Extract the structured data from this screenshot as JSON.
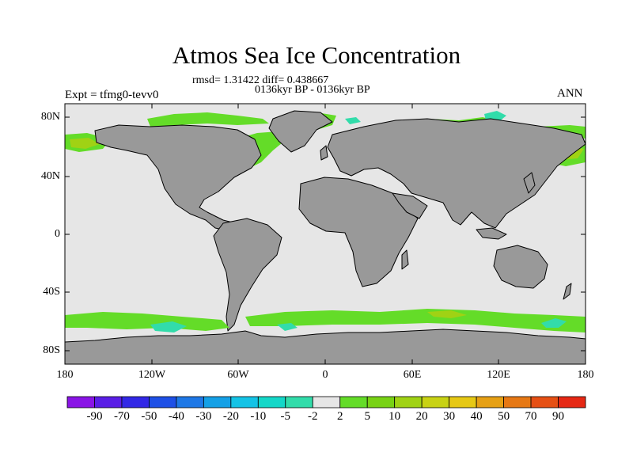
{
  "title": "Atmos Sea Ice Concentration",
  "stats_text": "rmsd= 1.31422 diff= 0.438667",
  "period_text": "0136kyr BP - 0136kyr BP",
  "expt_text": "Expt = tfmg0-tevv0",
  "season_text": "ANN",
  "lat_labels": [
    "80N",
    "40N",
    "0",
    "40S",
    "80S"
  ],
  "lon_labels": [
    "180",
    "120W",
    "60W",
    "0",
    "60E",
    "120E",
    "180"
  ],
  "legend": {
    "labels": [
      "-90",
      "-70",
      "-50",
      "-40",
      "-30",
      "-20",
      "-10",
      "-5",
      "-2",
      "2",
      "5",
      "10",
      "20",
      "30",
      "40",
      "50",
      "70",
      "90"
    ],
    "colors": [
      "#8a14e6",
      "#5a1ee6",
      "#3228e6",
      "#1e50e6",
      "#1e78e6",
      "#14a0e6",
      "#14c3e6",
      "#14d7c8",
      "#32dcaa",
      "#e6e6e6",
      "#64dc28",
      "#78d214",
      "#a0d214",
      "#c8d214",
      "#e6c814",
      "#e6a014",
      "#e67814",
      "#e65014",
      "#e62814"
    ]
  },
  "colors": {
    "ocean": "#e6e6e6",
    "land": "#999999",
    "coast": "#000000",
    "ice_increase_light": "#64dc28",
    "ice_increase_mid": "#a0d214",
    "ice_decrease_light": "#32dcaa"
  }
}
